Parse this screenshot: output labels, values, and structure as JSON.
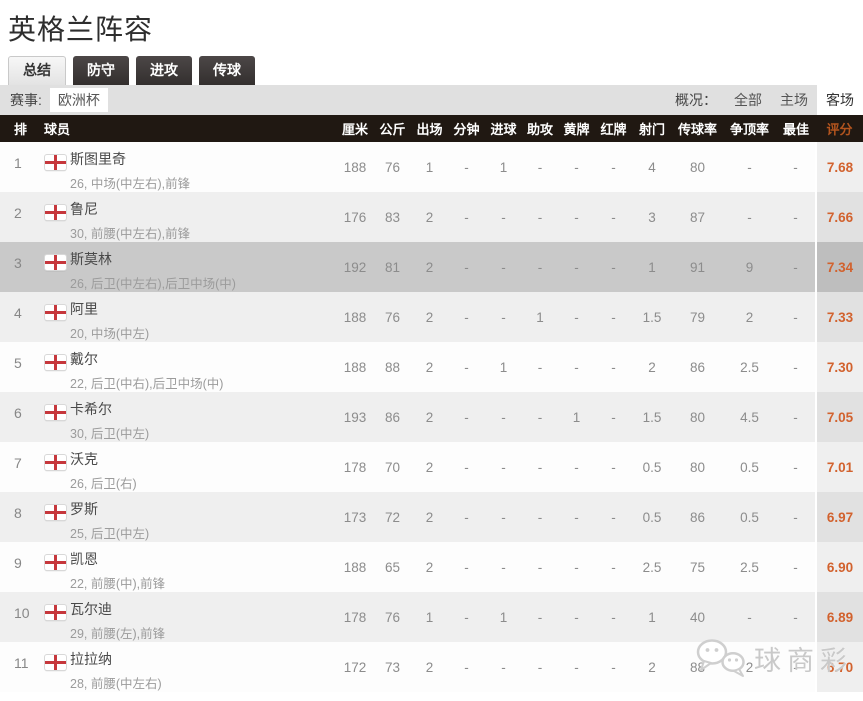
{
  "page": {
    "title": "英格兰阵容"
  },
  "tabs": [
    {
      "label": "总结",
      "active": true
    },
    {
      "label": "防守",
      "active": false
    },
    {
      "label": "进攻",
      "active": false
    },
    {
      "label": "传球",
      "active": false
    }
  ],
  "filters": {
    "competition_label": "赛事:",
    "competition_value": "欧洲杯",
    "overview_label": "概况：",
    "overview_options": [
      {
        "label": "全部",
        "selected": false
      },
      {
        "label": "主场",
        "selected": false
      },
      {
        "label": "客场",
        "selected": true
      }
    ]
  },
  "table": {
    "headers": {
      "rank": "排",
      "player": "球员",
      "stats": [
        "厘米",
        "公斤",
        "出场",
        "分钟",
        "进球",
        "助攻",
        "黄牌",
        "红牌",
        "射门",
        "传球率",
        "争顶率",
        "最佳"
      ],
      "rating": "评分"
    },
    "rows": [
      {
        "rank": "1",
        "flag": "england",
        "name": "斯图里奇",
        "info": "26, 中场(中左右),前锋",
        "stats": [
          "188",
          "76",
          "1",
          "-",
          "1",
          "-",
          "-",
          "-",
          "4",
          "80",
          "-",
          "-"
        ],
        "rating": "7.68",
        "highlight": false
      },
      {
        "rank": "2",
        "flag": "england",
        "name": "鲁尼",
        "info": "30, 前腰(中左右),前锋",
        "stats": [
          "176",
          "83",
          "2",
          "-",
          "-",
          "-",
          "-",
          "-",
          "3",
          "87",
          "-",
          "-"
        ],
        "rating": "7.66",
        "highlight": false
      },
      {
        "rank": "3",
        "flag": "england",
        "name": "斯莫林",
        "info": "26, 后卫(中左右),后卫中场(中)",
        "stats": [
          "192",
          "81",
          "2",
          "-",
          "-",
          "-",
          "-",
          "-",
          "1",
          "91",
          "9",
          "-"
        ],
        "rating": "7.34",
        "highlight": true
      },
      {
        "rank": "4",
        "flag": "england",
        "name": "阿里",
        "info": "20, 中场(中左)",
        "stats": [
          "188",
          "76",
          "2",
          "-",
          "-",
          "1",
          "-",
          "-",
          "1.5",
          "79",
          "2",
          "-"
        ],
        "rating": "7.33",
        "highlight": false
      },
      {
        "rank": "5",
        "flag": "england",
        "name": "戴尔",
        "info": "22, 后卫(中右),后卫中场(中)",
        "stats": [
          "188",
          "88",
          "2",
          "-",
          "1",
          "-",
          "-",
          "-",
          "2",
          "86",
          "2.5",
          "-"
        ],
        "rating": "7.30",
        "highlight": false
      },
      {
        "rank": "6",
        "flag": "england",
        "name": "卡希尔",
        "info": "30, 后卫(中左)",
        "stats": [
          "193",
          "86",
          "2",
          "-",
          "-",
          "-",
          "1",
          "-",
          "1.5",
          "80",
          "4.5",
          "-"
        ],
        "rating": "7.05",
        "highlight": false
      },
      {
        "rank": "7",
        "flag": "england",
        "name": "沃克",
        "info": "26, 后卫(右)",
        "stats": [
          "178",
          "70",
          "2",
          "-",
          "-",
          "-",
          "-",
          "-",
          "0.5",
          "80",
          "0.5",
          "-"
        ],
        "rating": "7.01",
        "highlight": false
      },
      {
        "rank": "8",
        "flag": "england",
        "name": "罗斯",
        "info": "25, 后卫(中左)",
        "stats": [
          "173",
          "72",
          "2",
          "-",
          "-",
          "-",
          "-",
          "-",
          "0.5",
          "86",
          "0.5",
          "-"
        ],
        "rating": "6.97",
        "highlight": false
      },
      {
        "rank": "9",
        "flag": "england",
        "name": "凯恩",
        "info": "22, 前腰(中),前锋",
        "stats": [
          "188",
          "65",
          "2",
          "-",
          "-",
          "-",
          "-",
          "-",
          "2.5",
          "75",
          "2.5",
          "-"
        ],
        "rating": "6.90",
        "highlight": false
      },
      {
        "rank": "10",
        "flag": "england",
        "name": "瓦尔迪",
        "info": "29, 前腰(左),前锋",
        "stats": [
          "178",
          "76",
          "1",
          "-",
          "1",
          "-",
          "-",
          "-",
          "1",
          "40",
          "-",
          "-"
        ],
        "rating": "6.89",
        "highlight": false
      },
      {
        "rank": "11",
        "flag": "england",
        "name": "拉拉纳",
        "info": "28, 前腰(中左右)",
        "stats": [
          "172",
          "73",
          "2",
          "-",
          "-",
          "-",
          "-",
          "-",
          "2",
          "88",
          "2",
          "-"
        ],
        "rating": "6.70",
        "highlight": false
      }
    ]
  },
  "watermark": {
    "text": "球商彩",
    "logo": "wechat-icon"
  },
  "colors": {
    "header_bg": "#201812",
    "rating_text": "#d2622e",
    "rating_header_text": "#b3541e",
    "highlight_row_bg": "#c9c9c9",
    "even_row_bg": "#efefef",
    "filter_bar_bg": "#e0e0e0",
    "dark_tab_bg": "#3a3635",
    "flag_cross": "#c6373c"
  }
}
